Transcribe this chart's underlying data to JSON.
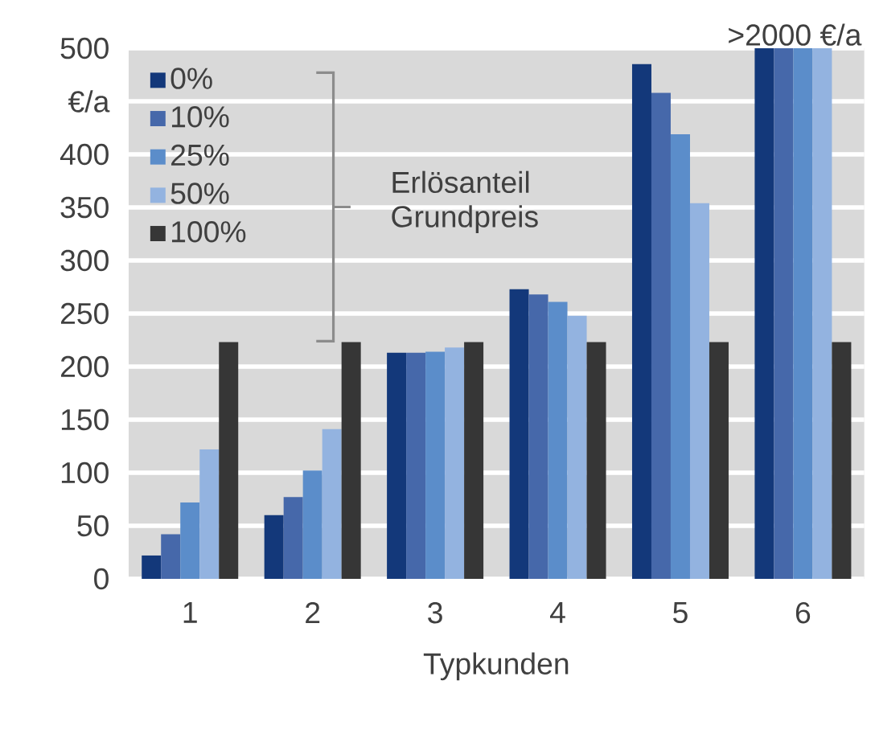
{
  "chart_data": {
    "type": "bar",
    "xlabel": "Typkunden",
    "ylabel": "€/a",
    "legend_title": "Erlösanteil Grundpreis",
    "categories": [
      "1",
      "2",
      "3",
      "4",
      "5",
      "6"
    ],
    "series": [
      {
        "name": "0%",
        "color": "#13387a",
        "values": [
          22,
          60,
          213,
          273,
          485,
          500
        ]
      },
      {
        "name": "10%",
        "color": "#4668aa",
        "values": [
          42,
          77,
          213,
          268,
          458,
          500
        ]
      },
      {
        "name": "25%",
        "color": "#5b8dca",
        "values": [
          72,
          102,
          214,
          261,
          419,
          500
        ]
      },
      {
        "name": "50%",
        "color": "#93b3e0",
        "values": [
          122,
          141,
          218,
          248,
          354,
          500
        ]
      },
      {
        "name": "100%",
        "color": "#363636",
        "values": [
          223,
          223,
          223,
          223,
          223,
          223
        ]
      }
    ],
    "ylim": [
      0,
      500
    ],
    "yticks": [
      0,
      50,
      100,
      150,
      200,
      250,
      300,
      350,
      400,
      {
        "value": 450,
        "label": null
      },
      500
    ],
    "grid": "y",
    "legend": "top left",
    "annotations": [
      {
        "text": ">2000 €/a",
        "x": "6",
        "y": 500
      }
    ]
  }
}
